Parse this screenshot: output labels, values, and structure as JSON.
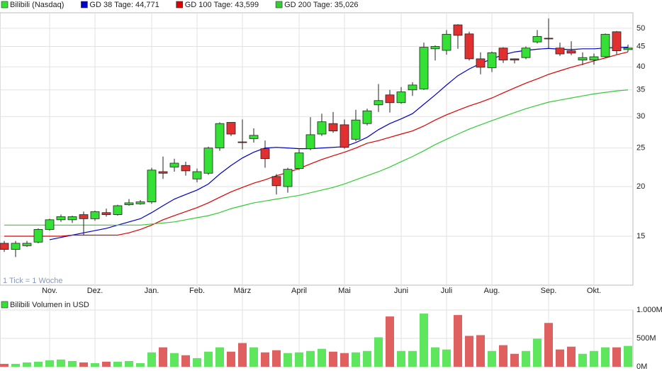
{
  "chart_data": [
    {
      "type": "candlestick",
      "name": "Bilibili (Nasdaq)",
      "annotation": "1 Tick = 1 Woche",
      "categories": [
        null,
        null,
        null,
        null,
        "Nov.",
        null,
        null,
        null,
        "Dez.",
        null,
        null,
        null,
        null,
        "Jan.",
        null,
        null,
        null,
        "Feb.",
        null,
        null,
        null,
        "März",
        null,
        null,
        null,
        null,
        "April",
        null,
        null,
        null,
        "Mai",
        null,
        null,
        null,
        null,
        "Juni",
        null,
        null,
        null,
        "Juli",
        null,
        null,
        null,
        "Aug.",
        null,
        null,
        null,
        null,
        "Sep.",
        null,
        null,
        null,
        "Okt.",
        null,
        null,
        null
      ],
      "open": [
        14.4,
        13.9,
        14.2,
        14.5,
        15.6,
        16.5,
        16.5,
        17.0,
        16.6,
        17.2,
        17.0,
        18.0,
        18.1,
        18.3,
        21.8,
        22.4,
        22.6,
        20.9,
        21.6,
        25.0,
        29.0,
        25.9,
        26.4,
        24.9,
        21.2,
        20.0,
        22.2,
        24.9,
        27.1,
        28.8,
        28.6,
        26.3,
        28.8,
        32.1,
        34.0,
        32.5,
        35.0,
        35.2,
        44.4,
        44.0,
        51.0,
        48.4,
        41.9,
        39.8,
        44.6,
        41.9,
        42.2,
        46.2,
        47.2,
        44.6,
        43.9,
        41.6,
        41.6,
        42.4,
        49.0,
        44.2
      ],
      "high": [
        14.6,
        14.6,
        14.6,
        15.7,
        16.6,
        17.0,
        16.9,
        17.3,
        17.4,
        17.6,
        18.0,
        18.6,
        18.5,
        22.3,
        23.8,
        23.5,
        23.1,
        22.2,
        25.2,
        29.0,
        29.0,
        29.5,
        28.0,
        26.1,
        21.5,
        22.3,
        24.8,
        29.9,
        30.5,
        30.8,
        29.5,
        31.2,
        31.4,
        36.2,
        35.0,
        35.6,
        36.6,
        46.0,
        45.3,
        49.5,
        51.2,
        49.0,
        43.5,
        43.7,
        44.8,
        42.0,
        45.0,
        49.5,
        52.9,
        46.0,
        46.4,
        43.5,
        43.2,
        48.5,
        49.2,
        45.5
      ],
      "low": [
        13.7,
        13.3,
        14.1,
        14.4,
        15.5,
        16.3,
        16.2,
        15.1,
        16.4,
        16.8,
        16.9,
        17.9,
        18.0,
        18.1,
        20.9,
        21.8,
        21.3,
        20.5,
        21.4,
        24.6,
        26.8,
        24.8,
        25.8,
        22.3,
        19.1,
        19.3,
        22.0,
        24.7,
        26.8,
        27.3,
        24.9,
        26.0,
        28.5,
        30.8,
        30.7,
        32.3,
        33.8,
        35.0,
        41.5,
        42.9,
        44.4,
        41.5,
        38.3,
        38.8,
        40.9,
        40.8,
        41.8,
        45.8,
        44.4,
        42.6,
        42.8,
        40.4,
        40.5,
        42.2,
        43.0,
        43.6
      ],
      "close": [
        13.9,
        14.4,
        14.4,
        15.6,
        16.5,
        16.8,
        16.8,
        16.6,
        17.3,
        17.0,
        17.9,
        18.2,
        18.3,
        22.0,
        21.6,
        22.9,
        21.9,
        21.8,
        25.0,
        28.8,
        27.1,
        25.8,
        26.9,
        23.5,
        20.1,
        22.1,
        24.3,
        27.0,
        29.1,
        27.6,
        25.1,
        29.4,
        31.0,
        32.9,
        32.5,
        34.6,
        36.0,
        44.8,
        45.0,
        48.3,
        48.0,
        41.9,
        39.9,
        43.4,
        41.6,
        41.6,
        44.6,
        47.7,
        47.1,
        43.1,
        43.3,
        42.2,
        42.4,
        48.3,
        43.9,
        44.6
      ],
      "up_color": "#33e033",
      "down_color": "#e03030",
      "color": "#33e033",
      "series": [
        {
          "name": "GD 38 Tage: 44,771",
          "color": "#0000cc",
          "values": [
            null,
            null,
            null,
            null,
            14.7,
            14.9,
            15.1,
            15.3,
            15.5,
            15.7,
            16.0,
            16.3,
            16.6,
            17.2,
            17.9,
            18.6,
            19.1,
            19.6,
            20.3,
            21.5,
            22.6,
            23.6,
            24.4,
            25.0,
            25.1,
            25.0,
            24.9,
            24.9,
            25.0,
            25.1,
            25.2,
            25.8,
            26.6,
            27.8,
            28.8,
            29.6,
            30.5,
            32.2,
            34.0,
            36.0,
            38.0,
            39.5,
            40.8,
            41.9,
            42.9,
            43.6,
            44.0,
            44.3,
            44.5,
            44.3,
            44.2,
            44.4,
            44.4,
            44.6,
            44.7,
            44.8
          ]
        },
        {
          "name": "GD 100 Tage: 43,599",
          "color": "#dd0000",
          "values": [
            15.0,
            15.0,
            15.0,
            15.0,
            15.0,
            15.0,
            15.1,
            15.1,
            15.1,
            15.1,
            15.1,
            15.3,
            15.6,
            16.0,
            16.5,
            16.9,
            17.3,
            17.7,
            18.2,
            18.8,
            19.4,
            19.9,
            20.4,
            20.8,
            21.3,
            21.7,
            22.2,
            22.8,
            23.4,
            23.9,
            24.4,
            25.0,
            25.7,
            26.1,
            26.6,
            27.1,
            27.6,
            28.4,
            29.4,
            30.3,
            31.1,
            31.9,
            32.6,
            33.4,
            34.4,
            35.4,
            36.4,
            37.3,
            38.3,
            39.1,
            39.9,
            40.6,
            41.4,
            42.1,
            42.9,
            43.6
          ]
        },
        {
          "name": "GD 200 Tage: 35,026",
          "color": "#33cc33",
          "values": [
            16.0,
            16.0,
            16.0,
            16.0,
            16.0,
            16.0,
            16.0,
            16.0,
            16.0,
            16.0,
            16.0,
            16.0,
            16.0,
            16.1,
            16.2,
            16.3,
            16.5,
            16.7,
            16.9,
            17.2,
            17.6,
            17.9,
            18.2,
            18.4,
            18.6,
            18.8,
            19.0,
            19.3,
            19.6,
            19.9,
            20.3,
            20.8,
            21.3,
            21.8,
            22.4,
            23.1,
            23.8,
            24.6,
            25.5,
            26.3,
            27.1,
            27.9,
            28.6,
            29.3,
            30.0,
            30.7,
            31.4,
            32.0,
            32.6,
            33.0,
            33.4,
            33.8,
            34.2,
            34.5,
            34.8,
            35.0
          ]
        }
      ],
      "ylim": [
        11.3,
        54.7
      ],
      "yticks": [
        15,
        20,
        25,
        30,
        35,
        40,
        45,
        50
      ],
      "log_scale": true,
      "grid": true
    },
    {
      "type": "bar",
      "name": "Bilibili Volumen in USD",
      "color": "#33e033",
      "up_color": "#5ee65e",
      "down_color": "#e06060",
      "values": [
        51,
        51,
        76,
        89,
        114,
        127,
        101,
        76,
        63,
        89,
        89,
        101,
        63,
        253,
        342,
        241,
        203,
        152,
        266,
        342,
        266,
        418,
        342,
        253,
        291,
        241,
        253,
        278,
        316,
        266,
        241,
        253,
        278,
        519,
        886,
        278,
        278,
        937,
        342,
        304,
        911,
        544,
        557,
        278,
        380,
        228,
        278,
        494,
        772,
        304,
        354,
        228,
        278,
        342,
        342,
        367
      ],
      "ylim": [
        0,
        1000
      ],
      "yticks": [
        {
          "value": 1000,
          "label": "1.000M"
        },
        {
          "value": 500,
          "label": "500M"
        },
        {
          "value": 0,
          "label": "0M"
        }
      ],
      "grid": true
    }
  ]
}
